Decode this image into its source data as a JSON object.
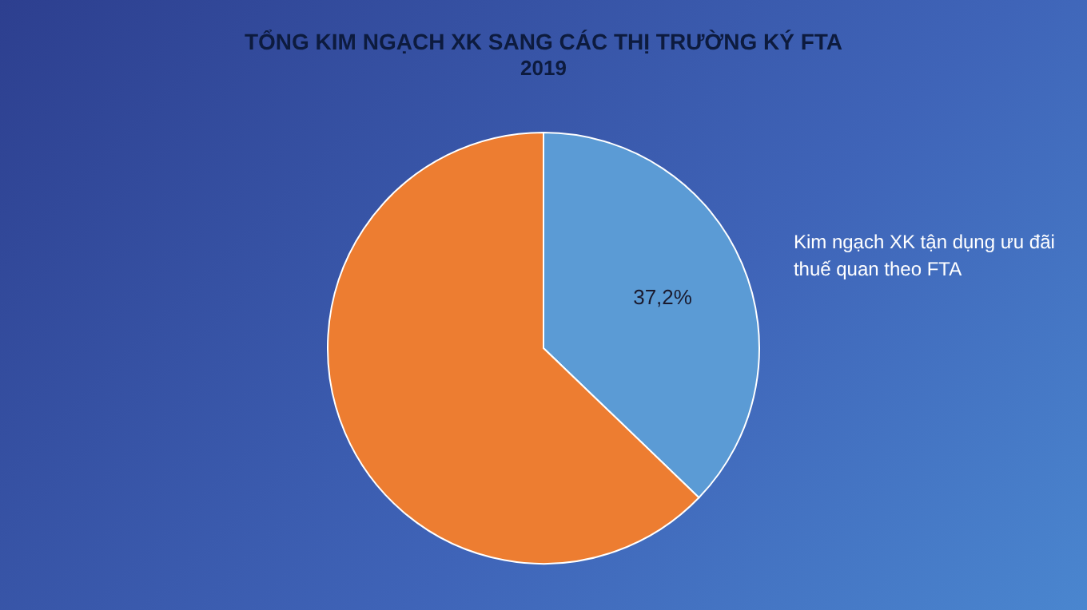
{
  "chart_data": {
    "type": "pie",
    "title": "TỔNG KIM NGẠCH XK SANG CÁC THỊ TRƯỜNG KÝ FTA",
    "subtitle": "2019",
    "categories": [
      "Kim ngạch XK tận dụng ưu đãi thuế quan theo FTA",
      null
    ],
    "values": [
      37.2,
      62.8
    ],
    "colors": [
      "#5b9bd5",
      "#ed7d31"
    ],
    "value_labels": [
      "37,2%",
      null
    ],
    "legend": false
  }
}
